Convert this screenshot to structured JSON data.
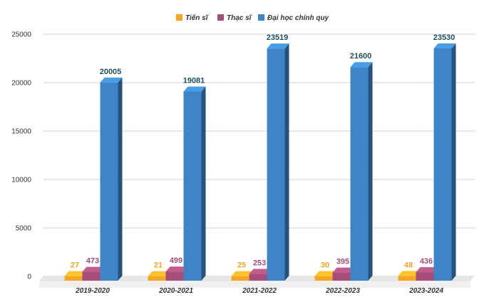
{
  "chart_data": {
    "type": "bar",
    "categories": [
      "2019-2020",
      "2020-2021",
      "2021-2022",
      "2022-2023",
      "2023-2024"
    ],
    "series": [
      {
        "name": "Tiến sĩ",
        "values": [
          27,
          21,
          25,
          30,
          48
        ],
        "color": "#f5a623",
        "label_color": "#f5a623"
      },
      {
        "name": "Thạc sĩ",
        "values": [
          473,
          499,
          253,
          395,
          436
        ],
        "color": "#a64d79",
        "label_color": "#a64d79"
      },
      {
        "name": "Đại học chính quy",
        "values": [
          20005,
          19081,
          23519,
          21600,
          23530
        ],
        "color": "#3d85c6",
        "label_color": "#1c4f5c"
      }
    ],
    "yticks": [
      0,
      5000,
      10000,
      15000,
      20000,
      25000
    ],
    "ylim": [
      0,
      25000
    ],
    "grid": true,
    "legend_position": "top-center",
    "title": "",
    "xlabel": "",
    "ylabel": ""
  }
}
